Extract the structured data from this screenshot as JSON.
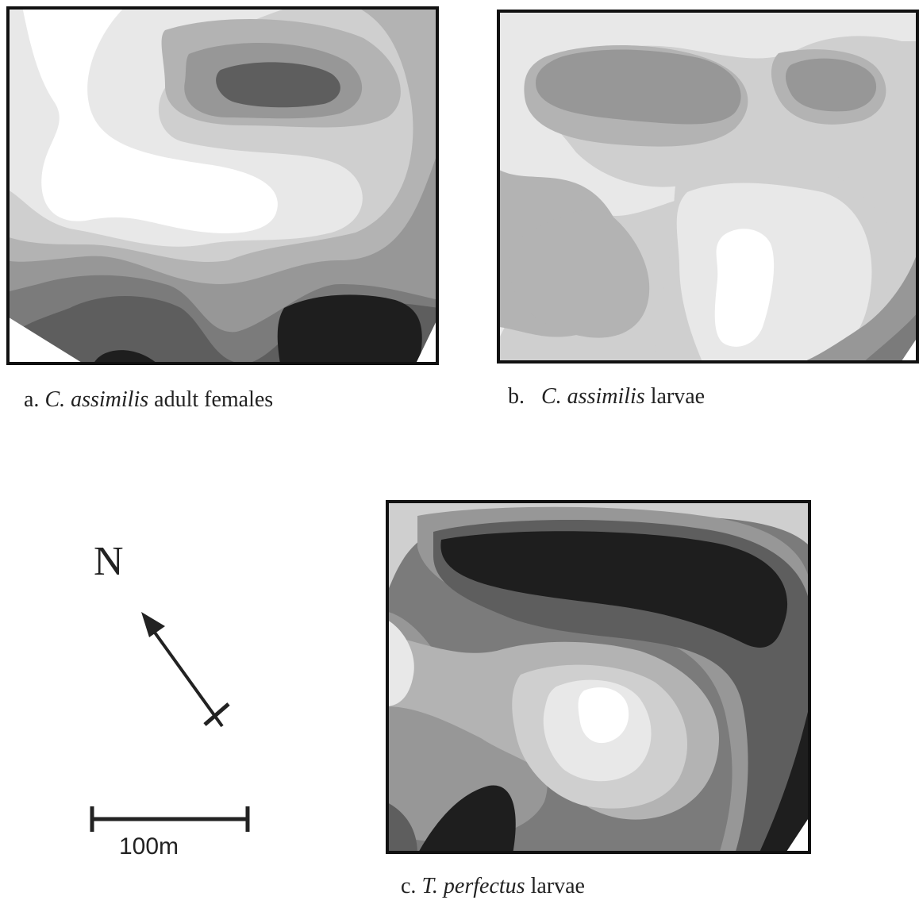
{
  "panels": [
    {
      "id": "a",
      "letter": "a.",
      "species": "C. assimilis",
      "suffix": "adult females"
    },
    {
      "id": "b",
      "letter": "b.",
      "species": "C. assimilis",
      "suffix": "larvae"
    },
    {
      "id": "c",
      "letter": "c.",
      "species": "T. perfectus",
      "suffix": "larvae"
    }
  ],
  "compass": {
    "label": "N"
  },
  "scale_bar": {
    "label": "100m"
  },
  "colors": {
    "level_0": "#ffffff",
    "level_1": "#e8e8e8",
    "level_2": "#cfcfcf",
    "level_3": "#b3b3b3",
    "level_4": "#979797",
    "level_5": "#7b7b7b",
    "level_6": "#5e5e5e",
    "level_7": "#1e1e1e",
    "frame": "#111111"
  }
}
